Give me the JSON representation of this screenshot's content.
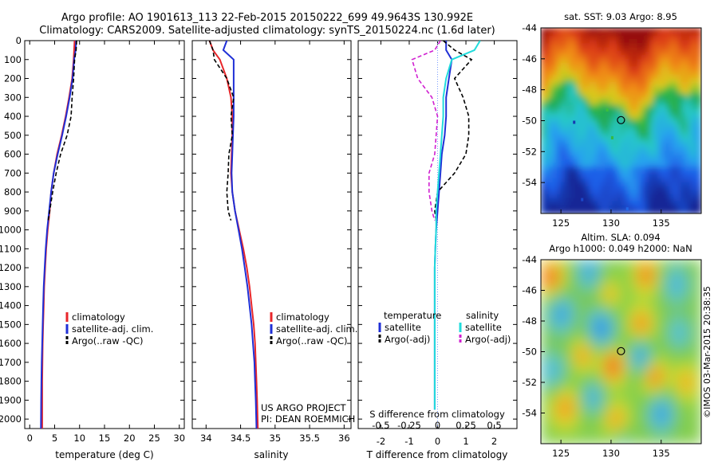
{
  "header": {
    "title_line1": "Argo profile: AO 1901613_113 22-Feb-2015 20150222_699 49.9643S 130.992E",
    "title_line2": "Climatology: CARS2009. Satellite-adjusted climatology: synTS_20150224.nc (1.6d later)"
  },
  "colors": {
    "climatology": "#e8262a",
    "satellite_adj": "#1f2fd6",
    "argo": "#000000",
    "sal_satellite": "#22dcdc",
    "sal_argo": "#d020d0"
  },
  "chart_data": [
    {
      "type": "line",
      "name": "temperature-profile",
      "xlabel": "temperature (deg C)",
      "ylabel": "",
      "xlim": [
        -1,
        31
      ],
      "ylim": [
        2050,
        0
      ],
      "xticks": [
        0,
        5,
        10,
        15,
        20,
        25,
        30
      ],
      "yticks": [
        0,
        100,
        200,
        300,
        400,
        500,
        600,
        700,
        800,
        900,
        1000,
        1100,
        1200,
        1300,
        1400,
        1500,
        1600,
        1700,
        1800,
        1900,
        2000
      ],
      "legend": [
        "climatology",
        "satellite-adj. clim.",
        "Argo(..raw -QC)"
      ],
      "legend_position": "lower-center",
      "series": [
        {
          "name": "climatology",
          "x": [
            9.0,
            8.9,
            8.8,
            8.5,
            7.9,
            7.2,
            6.4,
            5.5,
            4.8,
            4.3,
            4.0,
            3.6,
            3.3,
            3.1,
            2.9,
            2.8,
            2.7,
            2.6,
            2.55,
            2.5,
            2.5,
            2.5
          ],
          "y": [
            0,
            50,
            100,
            200,
            300,
            400,
            500,
            600,
            700,
            800,
            900,
            1000,
            1100,
            1200,
            1300,
            1400,
            1500,
            1600,
            1700,
            1800,
            1900,
            2050
          ]
        },
        {
          "name": "satellite-adj. clim.",
          "x": [
            9.3,
            9.2,
            8.9,
            8.6,
            8.0,
            7.3,
            6.5,
            5.6,
            4.8,
            4.3,
            3.9,
            3.5,
            3.2,
            3.0,
            2.8,
            2.7,
            2.6,
            2.5,
            2.4,
            2.35,
            2.3,
            2.25
          ],
          "y": [
            0,
            50,
            100,
            200,
            300,
            400,
            500,
            600,
            700,
            800,
            900,
            1000,
            1100,
            1200,
            1300,
            1400,
            1500,
            1600,
            1700,
            1800,
            1900,
            2050
          ]
        },
        {
          "name": "Argo(..raw -QC)",
          "x": [
            9.4,
            9.3,
            9.0,
            8.8,
            8.5,
            8.3,
            7.5,
            6.2,
            5.3,
            4.6,
            4.0,
            3.7
          ],
          "y": [
            0,
            50,
            100,
            200,
            300,
            400,
            500,
            600,
            700,
            800,
            900,
            950
          ]
        }
      ]
    },
    {
      "type": "line",
      "name": "salinity-profile",
      "xlabel": "salinity",
      "xlim": [
        33.8,
        36.1
      ],
      "ylim": [
        2050,
        0
      ],
      "xticks": [
        34,
        34.5,
        35,
        35.5,
        36
      ],
      "legend": [
        "climatology",
        "satellite-adj. clim.",
        "Argo(..raw -QC)"
      ],
      "legend_position": "lower-center",
      "annotations": [
        "US ARGO PROJECT",
        "PI: DEAN ROEMMICH"
      ],
      "series": [
        {
          "name": "climatology",
          "x": [
            34.05,
            34.1,
            34.2,
            34.3,
            34.36,
            34.38,
            34.38,
            34.37,
            34.36,
            34.38,
            34.42,
            34.48,
            34.54,
            34.59,
            34.63,
            34.66,
            34.69,
            34.71,
            34.72,
            34.73,
            34.74,
            34.75
          ],
          "y": [
            0,
            50,
            100,
            200,
            300,
            400,
            500,
            600,
            700,
            800,
            900,
            1000,
            1100,
            1200,
            1300,
            1400,
            1500,
            1600,
            1700,
            1800,
            1900,
            2050
          ]
        },
        {
          "name": "satellite-adj. clim.",
          "x": [
            34.3,
            34.25,
            34.4,
            34.4,
            34.4,
            34.4,
            34.39,
            34.38,
            34.37,
            34.38,
            34.42,
            34.47,
            34.52,
            34.56,
            34.6,
            34.63,
            34.66,
            34.68,
            34.7,
            34.71,
            34.72,
            34.73
          ],
          "y": [
            0,
            50,
            100,
            200,
            300,
            400,
            500,
            600,
            700,
            800,
            900,
            1000,
            1100,
            1200,
            1300,
            1400,
            1500,
            1600,
            1700,
            1800,
            1900,
            2050
          ]
        },
        {
          "name": "Argo(..raw -QC)",
          "x": [
            34.05,
            34.1,
            34.12,
            34.3,
            34.4,
            34.36,
            34.38,
            34.33,
            34.32,
            34.3,
            34.32,
            34.36
          ],
          "y": [
            0,
            50,
            100,
            200,
            300,
            400,
            500,
            600,
            700,
            800,
            900,
            950
          ]
        }
      ]
    },
    {
      "type": "line",
      "name": "difference-from-climatology",
      "xlabel": "T difference from climatology",
      "xlabel_top": "S difference from climatology",
      "xlim": [
        -2.8,
        2.8
      ],
      "ylim": [
        2050,
        0
      ],
      "xticks": [
        -2,
        -1,
        0,
        1,
        2
      ],
      "xticks_S": [
        -0.5,
        -0.25,
        0,
        0.25,
        0.5
      ],
      "legend_titles": [
        "temperature",
        "salinity"
      ],
      "legend": [
        "satellite",
        "Argo(-adj)",
        "satellite",
        "Argo(-adj)"
      ],
      "legend_position": "lower-center",
      "series": [
        {
          "name": "temperature satellite",
          "x": [
            0.3,
            0.3,
            0.5,
            0.4,
            0.3,
            0.3,
            0.25,
            0.15,
            0.1,
            0.05,
            0.0,
            -0.05,
            -0.08,
            -0.1,
            -0.1,
            -0.1,
            -0.1,
            -0.1,
            -0.1,
            -0.1,
            -0.1
          ],
          "y": [
            0,
            50,
            100,
            200,
            300,
            400,
            500,
            600,
            700,
            800,
            900,
            1000,
            1100,
            1200,
            1300,
            1400,
            1500,
            1600,
            1700,
            1800,
            1950
          ]
        },
        {
          "name": "temperature Argo(-adj)",
          "x": [
            0.2,
            0.6,
            1.2,
            0.6,
            0.9,
            1.1,
            1.1,
            1.0,
            0.6,
            0.0,
            -0.1,
            -0.05
          ],
          "y": [
            0,
            50,
            100,
            200,
            300,
            400,
            500,
            600,
            700,
            800,
            900,
            950
          ]
        },
        {
          "name": "salinity satellite",
          "x": [
            1.5,
            1.3,
            0.5,
            0.3,
            0.2,
            0.2,
            0.15,
            0.1,
            0.05,
            0.0,
            -0.05,
            -0.05,
            -0.08,
            -0.1,
            -0.1,
            -0.1,
            -0.1,
            -0.1,
            -0.1,
            -0.1,
            -0.1
          ],
          "y": [
            0,
            50,
            100,
            200,
            300,
            400,
            500,
            600,
            700,
            800,
            900,
            1000,
            1100,
            1200,
            1300,
            1400,
            1500,
            1600,
            1700,
            1800,
            1950
          ]
        },
        {
          "name": "salinity Argo(-adj)",
          "x": [
            0.1,
            -0.1,
            -0.9,
            -0.7,
            -0.2,
            0.0,
            -0.05,
            -0.1,
            -0.3,
            -0.3,
            -0.2,
            -0.1
          ],
          "y": [
            0,
            50,
            100,
            200,
            300,
            400,
            500,
            600,
            700,
            800,
            900,
            950
          ]
        }
      ]
    },
    {
      "type": "heatmap",
      "name": "sst-map",
      "title": "sat. SST: 9.03 Argo: 8.95",
      "xlim": [
        123,
        139
      ],
      "ylim": [
        -56,
        -44
      ],
      "xticks": [
        125,
        130,
        135
      ],
      "yticks": [
        -44,
        -46,
        -48,
        -50,
        -52,
        -54
      ],
      "marker": {
        "lon": 130.992,
        "lat": -49.9643
      }
    },
    {
      "type": "heatmap",
      "name": "sla-map",
      "title": "Altim. SLA: 0.094",
      "subtitle": "Argo h1000: 0.049 h2000: NaN",
      "xlim": [
        123,
        139
      ],
      "ylim": [
        -56,
        -44
      ],
      "xticks": [
        125,
        130,
        135
      ],
      "yticks": [
        -44,
        -46,
        -48,
        -50,
        -52,
        -54
      ],
      "marker": {
        "lon": 130.992,
        "lat": -49.9643
      }
    }
  ],
  "footer": {
    "credit": "©IMOS 03-Mar-2015 20:38:35"
  }
}
